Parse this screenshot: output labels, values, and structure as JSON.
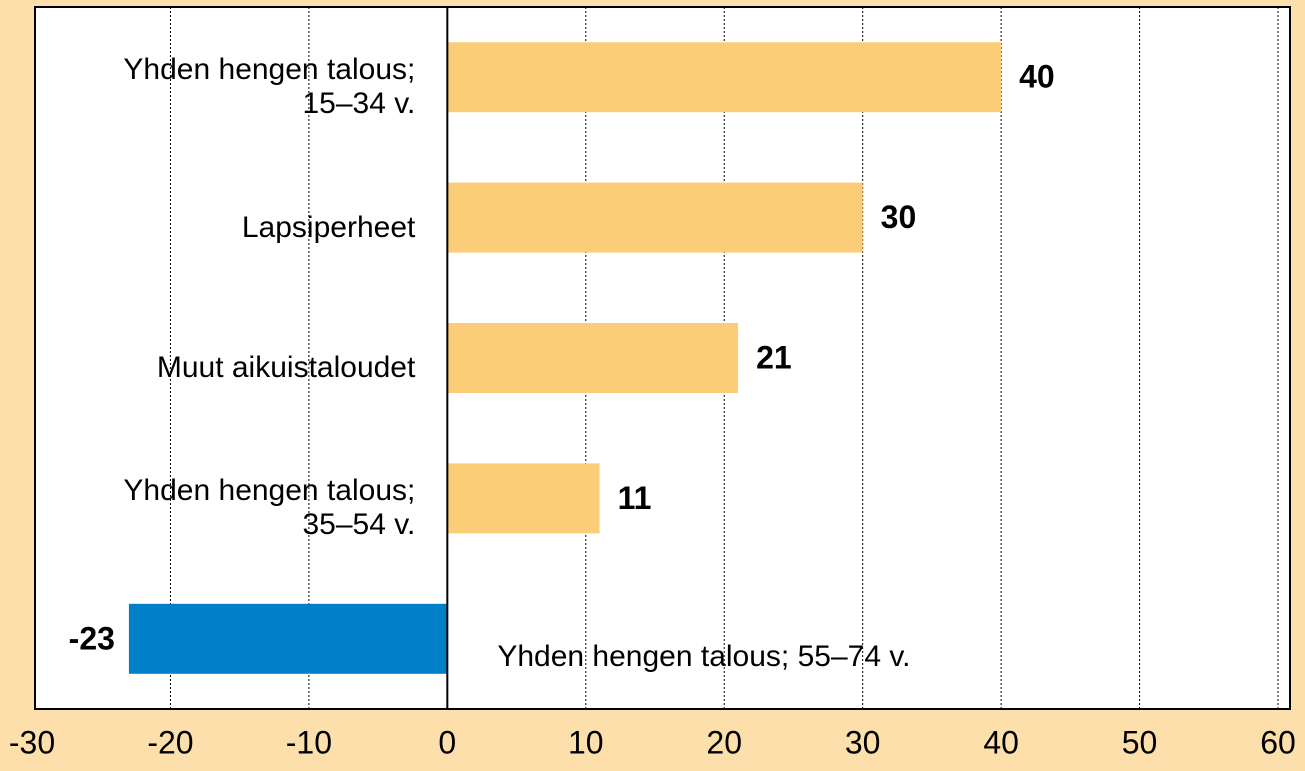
{
  "chart_data": {
    "type": "barh",
    "categories": [
      "Yhden hengen talous;\n15–34 v.",
      "Lapsiperheet",
      "Muut aikuistaloudet",
      "Yhden hengen talous;\n35–54 v.",
      "Yhden hengen talous; 55–74 v."
    ],
    "values": [
      40,
      30,
      21,
      11,
      -23
    ],
    "colors": [
      "#fccd79",
      "#fccd79",
      "#fccd79",
      "#fccd79",
      "#0080c8"
    ],
    "xlim": [
      -30,
      60
    ],
    "xticks": [
      -30,
      -20,
      -10,
      0,
      10,
      20,
      30,
      40,
      50,
      60
    ],
    "grid": true
  }
}
